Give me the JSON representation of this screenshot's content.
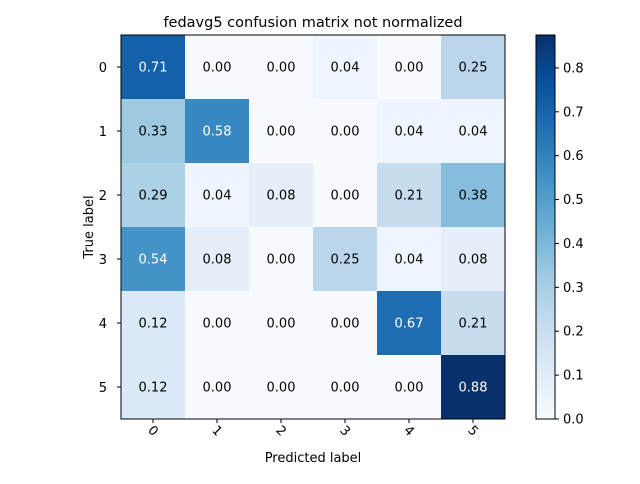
{
  "chart_data": {
    "type": "heatmap",
    "title": "fedavg5 confusion matrix not normalized",
    "xlabel": "Predicted label",
    "ylabel": "True label",
    "x_categories": [
      "0",
      "1",
      "2",
      "3",
      "4",
      "5"
    ],
    "y_categories": [
      "0",
      "1",
      "2",
      "3",
      "4",
      "5"
    ],
    "values": [
      [
        0.71,
        0.0,
        0.0,
        0.04,
        0.0,
        0.25
      ],
      [
        0.33,
        0.58,
        0.0,
        0.0,
        0.04,
        0.04
      ],
      [
        0.29,
        0.04,
        0.08,
        0.0,
        0.21,
        0.38
      ],
      [
        0.54,
        0.08,
        0.0,
        0.25,
        0.04,
        0.08
      ],
      [
        0.12,
        0.0,
        0.0,
        0.0,
        0.67,
        0.21
      ],
      [
        0.12,
        0.0,
        0.0,
        0.0,
        0.0,
        0.88
      ]
    ],
    "value_labels": [
      [
        "0.71",
        "0.00",
        "0.00",
        "0.04",
        "0.00",
        "0.25"
      ],
      [
        "0.33",
        "0.58",
        "0.00",
        "0.00",
        "0.04",
        "0.04"
      ],
      [
        "0.29",
        "0.04",
        "0.08",
        "0.00",
        "0.21",
        "0.38"
      ],
      [
        "0.54",
        "0.08",
        "0.00",
        "0.25",
        "0.04",
        "0.08"
      ],
      [
        "0.12",
        "0.00",
        "0.00",
        "0.00",
        "0.67",
        "0.21"
      ],
      [
        "0.12",
        "0.00",
        "0.00",
        "0.00",
        "0.00",
        "0.88"
      ]
    ],
    "colormap": "Blues",
    "color_range": [
      0,
      0.875
    ],
    "colorbar_ticks": [
      "0.0",
      "0.1",
      "0.2",
      "0.3",
      "0.4",
      "0.5",
      "0.6",
      "0.7",
      "0.8"
    ],
    "colorbar_tick_values": [
      0,
      0.1,
      0.2,
      0.3,
      0.4,
      0.5,
      0.6,
      0.7,
      0.8
    ],
    "xtick_rotation": 45,
    "grid": false
  }
}
